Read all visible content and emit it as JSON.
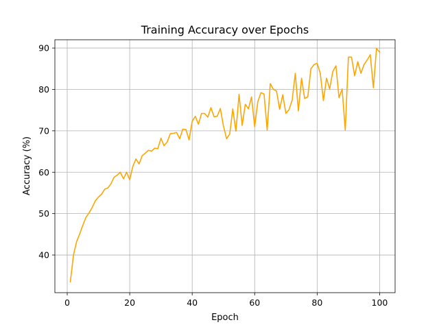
{
  "chart_data": {
    "type": "line",
    "title": "Training Accuracy over Epochs",
    "xlabel": "Epoch",
    "ylabel": "Accuracy (%)",
    "xlim": [
      -3.95,
      104.95
    ],
    "ylim": [
      30.9,
      92.0
    ],
    "xticks": [
      0,
      20,
      40,
      60,
      80,
      100
    ],
    "yticks": [
      40,
      50,
      60,
      70,
      80,
      90
    ],
    "grid": true,
    "colors": {
      "line": "#ffa500"
    },
    "series": [
      {
        "x": [
          1,
          2,
          3,
          4,
          5,
          6,
          7,
          8,
          9,
          10,
          11,
          12,
          13,
          14,
          15,
          16,
          17,
          18,
          19,
          20,
          21,
          22,
          23,
          24,
          25,
          26,
          27,
          28,
          29,
          30,
          31,
          32,
          33,
          34,
          35,
          36,
          37,
          38,
          39,
          40,
          41,
          42,
          43,
          44,
          45,
          46,
          47,
          48,
          49,
          50,
          51,
          52,
          53,
          54,
          55,
          56,
          57,
          58,
          59,
          60,
          61,
          62,
          63,
          64,
          65,
          66,
          67,
          68,
          69,
          70,
          71,
          72,
          73,
          74,
          75,
          76,
          77,
          78,
          79,
          80,
          81,
          82,
          83,
          84,
          85,
          86,
          87,
          88,
          89,
          90,
          91,
          92,
          93,
          94,
          95,
          96,
          97,
          98,
          99,
          100
        ],
        "values": [
          33.5,
          40.0,
          43.2,
          45.1,
          47.2,
          49.1,
          50.2,
          51.5,
          53.1,
          54.0,
          54.7,
          55.9,
          56.2,
          57.2,
          58.8,
          59.3,
          60.0,
          58.4,
          60.0,
          58.2,
          61.4,
          63.2,
          62.0,
          64.0,
          64.6,
          65.3,
          65.1,
          65.8,
          65.7,
          68.2,
          66.4,
          67.3,
          69.3,
          69.4,
          69.6,
          68.1,
          70.4,
          70.3,
          67.8,
          72.3,
          73.5,
          71.6,
          74.2,
          74.2,
          73.3,
          75.6,
          73.4,
          73.5,
          75.4,
          71.2,
          68.1,
          69.2,
          75.3,
          69.9,
          78.8,
          71.3,
          76.4,
          75.3,
          78.2,
          71.0,
          77.0,
          79.2,
          78.9,
          70.2,
          81.4,
          80.0,
          79.6,
          75.2,
          78.7,
          74.2,
          75.1,
          77.4,
          83.9,
          74.8,
          82.7,
          77.8,
          78.2,
          85.0,
          86.0,
          86.3,
          83.9,
          77.3,
          82.7,
          80.1,
          84.3,
          85.7,
          78.0,
          80.1,
          70.2,
          87.8,
          87.8,
          83.3,
          86.7,
          83.9,
          86.0,
          87.1,
          88.4,
          80.4,
          89.9,
          89.0
        ]
      }
    ]
  }
}
